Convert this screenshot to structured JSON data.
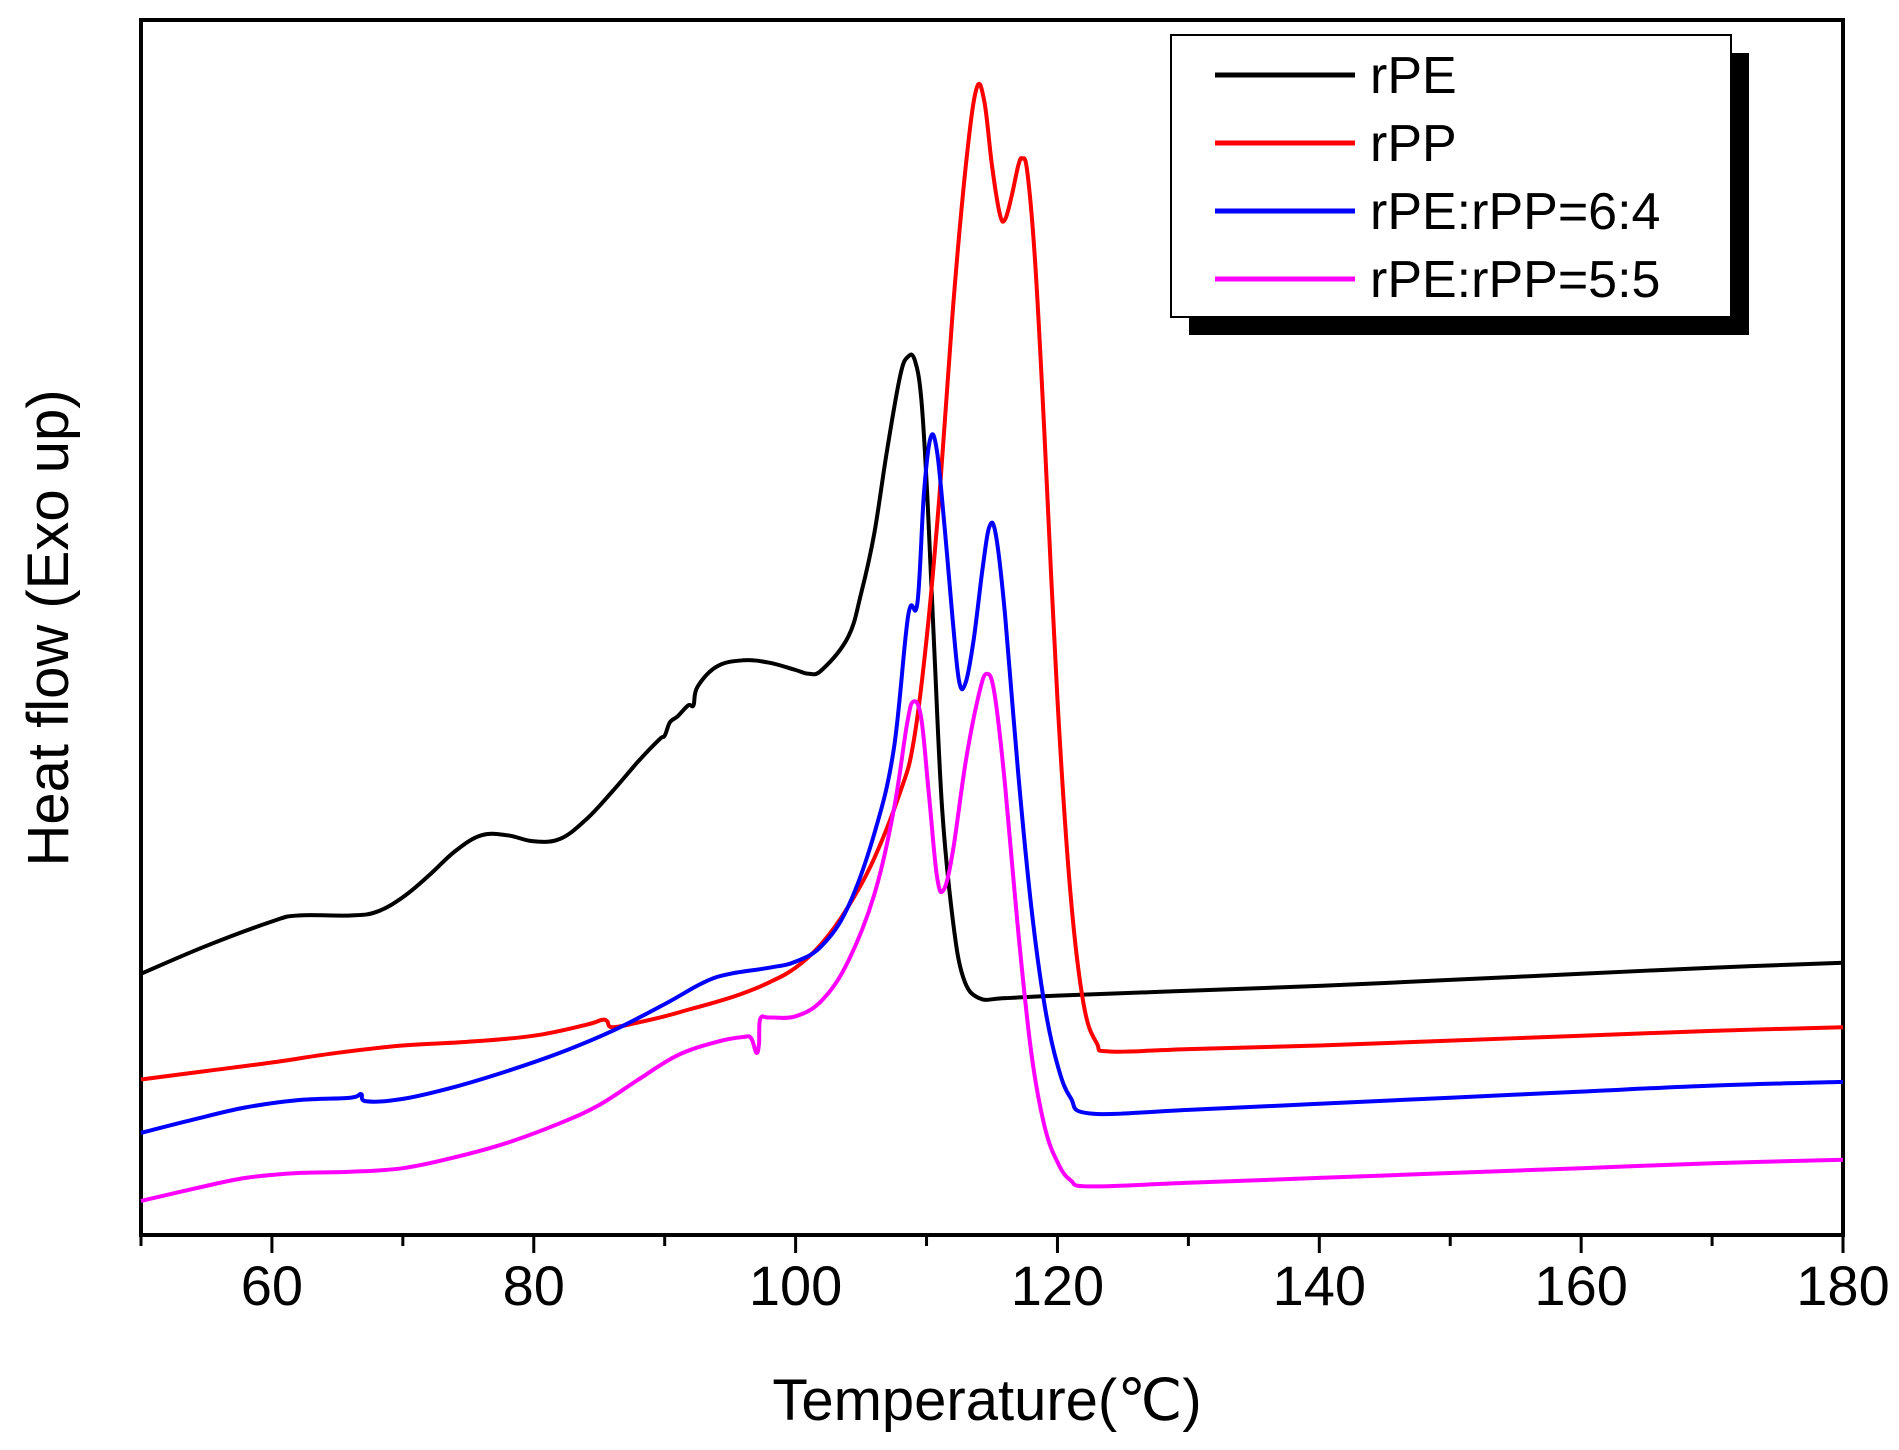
{
  "chart_data": {
    "type": "line",
    "title": "",
    "xlabel": "Temperature(℃)",
    "ylabel": "Heat flow (Exo up)",
    "xlim": [
      50,
      180
    ],
    "ylim": [
      0,
      100
    ],
    "x_ticks": [
      60,
      80,
      100,
      120,
      140,
      160,
      180
    ],
    "x_tick_labels": [
      "60",
      "80",
      "100",
      "120",
      "140",
      "160",
      "180"
    ],
    "y_ticks_shown": false,
    "grid": false,
    "legend_position": "top-right",
    "series": [
      {
        "name": "rPE",
        "color": "#000000",
        "points": [
          [
            50,
            21.5
          ],
          [
            55,
            23.8
          ],
          [
            60,
            25.8
          ],
          [
            62,
            26.3
          ],
          [
            66,
            26.3
          ],
          [
            68,
            26.6
          ],
          [
            70,
            27.8
          ],
          [
            72,
            29.6
          ],
          [
            74,
            31.6
          ],
          [
            76,
            32.9
          ],
          [
            78,
            32.9
          ],
          [
            80,
            32.4
          ],
          [
            82,
            32.6
          ],
          [
            84,
            34.2
          ],
          [
            86,
            36.5
          ],
          [
            88,
            39.0
          ],
          [
            89.6,
            40.8
          ],
          [
            90,
            41.1
          ],
          [
            90.4,
            42.2
          ],
          [
            91,
            42.7
          ],
          [
            91.8,
            43.6
          ],
          [
            92.2,
            43.6
          ],
          [
            92.5,
            45.1
          ],
          [
            94,
            46.8
          ],
          [
            96,
            47.3
          ],
          [
            98,
            47.1
          ],
          [
            100,
            46.5
          ],
          [
            101,
            46.2
          ],
          [
            102,
            46.5
          ],
          [
            104,
            49.2
          ],
          [
            105,
            52.8
          ],
          [
            106,
            57.7
          ],
          [
            107,
            64.7
          ],
          [
            108,
            70.8
          ],
          [
            108.6,
            72.3
          ],
          [
            109.1,
            72.0
          ],
          [
            109.6,
            68.8
          ],
          [
            110.1,
            60.0
          ],
          [
            110.6,
            48.0
          ],
          [
            111.2,
            35.0
          ],
          [
            112,
            26.0
          ],
          [
            112.8,
            21.2
          ],
          [
            114,
            19.5
          ],
          [
            116,
            19.5
          ],
          [
            120,
            19.7
          ],
          [
            130,
            20.1
          ],
          [
            140,
            20.5
          ],
          [
            150,
            21.0
          ],
          [
            160,
            21.5
          ],
          [
            170,
            22.0
          ],
          [
            180,
            22.4
          ]
        ]
      },
      {
        "name": "rPP",
        "color": "#ff0000",
        "points": [
          [
            50,
            12.8
          ],
          [
            55,
            13.5
          ],
          [
            60,
            14.2
          ],
          [
            65,
            15.0
          ],
          [
            70,
            15.6
          ],
          [
            75,
            15.9
          ],
          [
            80,
            16.4
          ],
          [
            84,
            17.3
          ],
          [
            85.2,
            17.7
          ],
          [
            85.6,
            17.6
          ],
          [
            86,
            17.1
          ],
          [
            88,
            17.5
          ],
          [
            90,
            18.0
          ],
          [
            92,
            18.6
          ],
          [
            94,
            19.2
          ],
          [
            96,
            19.9
          ],
          [
            98,
            20.8
          ],
          [
            100,
            22.0
          ],
          [
            102,
            24.0
          ],
          [
            104,
            27.0
          ],
          [
            106,
            31.0
          ],
          [
            108,
            36.5
          ],
          [
            109,
            40.5
          ],
          [
            110,
            49.0
          ],
          [
            111,
            61.0
          ],
          [
            112,
            76.0
          ],
          [
            113,
            88.0
          ],
          [
            113.8,
            94.3
          ],
          [
            114.4,
            93.4
          ],
          [
            115,
            88.0
          ],
          [
            115.6,
            84.0
          ],
          [
            116,
            83.6
          ],
          [
            116.5,
            85.5
          ],
          [
            117,
            88.0
          ],
          [
            117.3,
            88.6
          ],
          [
            117.7,
            87.5
          ],
          [
            118.3,
            80.0
          ],
          [
            119,
            66.0
          ],
          [
            120,
            44.0
          ],
          [
            121,
            28.0
          ],
          [
            122,
            19.0
          ],
          [
            123,
            15.8
          ],
          [
            124,
            15.1
          ],
          [
            130,
            15.3
          ],
          [
            140,
            15.6
          ],
          [
            150,
            16.0
          ],
          [
            160,
            16.4
          ],
          [
            170,
            16.8
          ],
          [
            180,
            17.1
          ]
        ]
      },
      {
        "name": "rPE:rPP=6:4",
        "color": "#0000ff",
        "points": [
          [
            50,
            8.4
          ],
          [
            54,
            9.5
          ],
          [
            58,
            10.5
          ],
          [
            62,
            11.1
          ],
          [
            66,
            11.3
          ],
          [
            66.8,
            11.6
          ],
          [
            67.2,
            11.0
          ],
          [
            70,
            11.2
          ],
          [
            74,
            12.2
          ],
          [
            78,
            13.5
          ],
          [
            82,
            15.0
          ],
          [
            86,
            16.8
          ],
          [
            90,
            19.0
          ],
          [
            93,
            20.8
          ],
          [
            95,
            21.5
          ],
          [
            98,
            22.0
          ],
          [
            100,
            22.5
          ],
          [
            102,
            23.8
          ],
          [
            104,
            27.0
          ],
          [
            106,
            33.0
          ],
          [
            107.5,
            40.0
          ],
          [
            108.6,
            51.0
          ],
          [
            109.3,
            52.0
          ],
          [
            109.8,
            61.0
          ],
          [
            110.3,
            65.6
          ],
          [
            110.8,
            64.5
          ],
          [
            111.4,
            58.0
          ],
          [
            112,
            50.6
          ],
          [
            112.5,
            45.5
          ],
          [
            113,
            45.5
          ],
          [
            113.6,
            49.0
          ],
          [
            114.3,
            55.0
          ],
          [
            114.8,
            58.3
          ],
          [
            115.3,
            57.6
          ],
          [
            116,
            51.0
          ],
          [
            117,
            38.0
          ],
          [
            118,
            27.0
          ],
          [
            119,
            19.0
          ],
          [
            120,
            14.0
          ],
          [
            121,
            11.3
          ],
          [
            122.5,
            10.0
          ],
          [
            130,
            10.3
          ],
          [
            140,
            10.8
          ],
          [
            150,
            11.3
          ],
          [
            160,
            11.8
          ],
          [
            170,
            12.3
          ],
          [
            180,
            12.6
          ]
        ]
      },
      {
        "name": "rPE:rPP=5:5",
        "color": "#ff00ff",
        "points": [
          [
            50,
            2.8
          ],
          [
            54,
            3.8
          ],
          [
            58,
            4.7
          ],
          [
            62,
            5.1
          ],
          [
            66,
            5.2
          ],
          [
            70,
            5.5
          ],
          [
            74,
            6.4
          ],
          [
            78,
            7.6
          ],
          [
            82,
            9.2
          ],
          [
            85,
            10.7
          ],
          [
            88,
            12.8
          ],
          [
            91,
            14.8
          ],
          [
            94,
            15.9
          ],
          [
            96,
            16.3
          ],
          [
            96.6,
            16.2
          ],
          [
            97,
            15.0
          ],
          [
            97.2,
            15.7
          ],
          [
            97.3,
            17.8
          ],
          [
            98,
            17.9
          ],
          [
            100,
            18.0
          ],
          [
            102,
            19.3
          ],
          [
            104,
            22.5
          ],
          [
            106,
            28.0
          ],
          [
            107.5,
            35.0
          ],
          [
            108.5,
            42.0
          ],
          [
            109,
            43.9
          ],
          [
            109.6,
            42.5
          ],
          [
            110.2,
            36.0
          ],
          [
            110.8,
            29.5
          ],
          [
            111.3,
            28.4
          ],
          [
            112,
            31.5
          ],
          [
            113,
            39.0
          ],
          [
            114,
            44.5
          ],
          [
            114.6,
            46.2
          ],
          [
            115.2,
            44.5
          ],
          [
            116,
            37.0
          ],
          [
            117,
            25.0
          ],
          [
            118,
            15.0
          ],
          [
            119,
            9.0
          ],
          [
            120,
            6.0
          ],
          [
            121,
            4.5
          ],
          [
            122.5,
            4.0
          ],
          [
            130,
            4.3
          ],
          [
            140,
            4.7
          ],
          [
            150,
            5.1
          ],
          [
            160,
            5.5
          ],
          [
            170,
            5.9
          ],
          [
            180,
            6.2
          ]
        ]
      }
    ]
  }
}
